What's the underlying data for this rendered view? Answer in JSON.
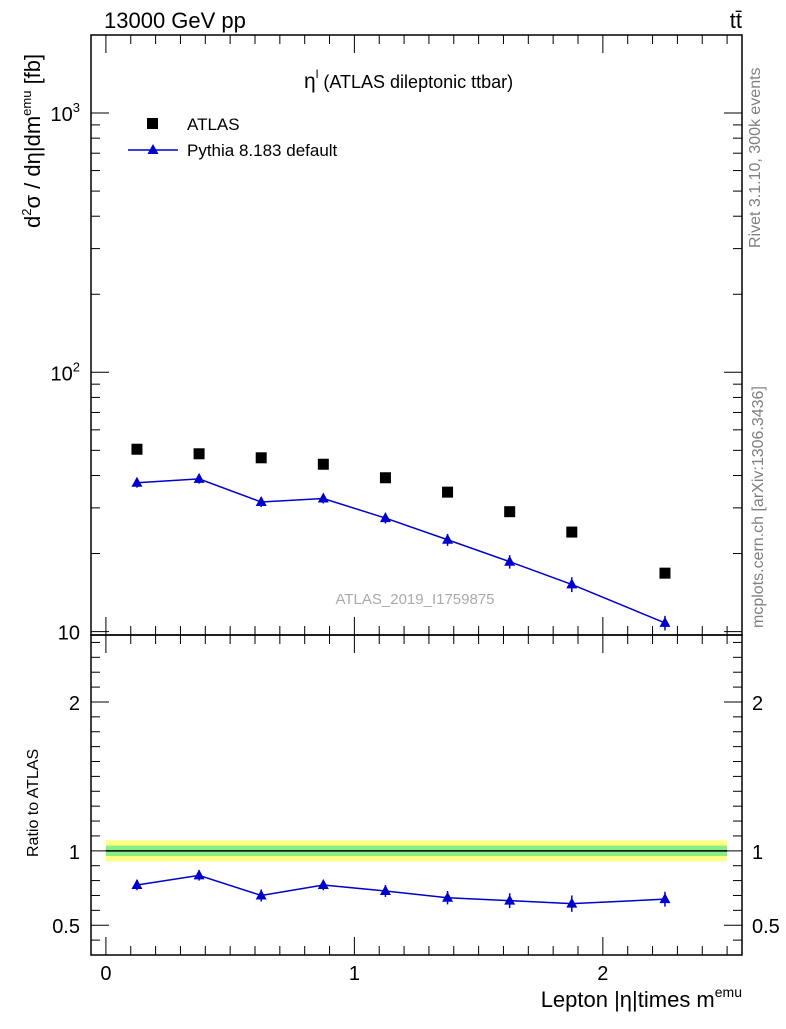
{
  "header": {
    "energy": "13000 GeV pp",
    "process": "tt̄"
  },
  "sidebar": {
    "rivet": "Rivet 3.1.10,  300k events",
    "site": "mcplots.cern.ch [arXiv:1306.3436]"
  },
  "chart_data": [
    {
      "type": "scatter",
      "panel": "main",
      "title": "ηˡ (ATLAS dileptonic ttbar)",
      "title_main": "η",
      "title_sup": "l",
      "title_rest": " (ATLAS dileptonic ttbar)",
      "ylabel_parts": [
        "d",
        "2",
        "σ / dη|dm",
        "emu",
        " [fb]"
      ],
      "yscale": "log",
      "ylim": [
        9.7,
        2000
      ],
      "xlim": [
        -0.06,
        2.56
      ],
      "yticks": [
        {
          "value": 10,
          "label": "10"
        },
        {
          "value": 100,
          "label": "10",
          "sup": "2"
        },
        {
          "value": 1000,
          "label": "10",
          "sup": "3"
        }
      ],
      "watermark": "ATLAS_2019_I1759875",
      "legend": {
        "position": "top-left"
      },
      "series": [
        {
          "name": "ATLAS",
          "marker": "square",
          "color": "#000000",
          "x": [
            0.125,
            0.375,
            0.625,
            0.875,
            1.125,
            1.375,
            1.625,
            1.875,
            2.25
          ],
          "y": [
            50.5,
            48.5,
            46.8,
            44.2,
            39.2,
            34.5,
            29.0,
            24.2,
            16.8
          ]
        },
        {
          "name": "Pythia 8.183 default",
          "marker": "triangle",
          "color": "#0000cc",
          "x": [
            0.125,
            0.375,
            0.625,
            0.875,
            1.125,
            1.375,
            1.625,
            1.875,
            2.25
          ],
          "y": [
            37.5,
            38.8,
            31.6,
            32.6,
            27.4,
            22.6,
            18.6,
            15.2,
            10.8
          ],
          "err": [
            1.6,
            1.6,
            1.4,
            1.4,
            1.3,
            1.2,
            1.1,
            1.0,
            0.7
          ]
        }
      ]
    },
    {
      "type": "line",
      "panel": "ratio",
      "ylabel": "Ratio to ATLAS",
      "xlabel": "Lepton |η|times m",
      "xlabel_sup": "emu",
      "ylim": [
        0.3,
        2.45
      ],
      "xlim": [
        -0.06,
        2.56
      ],
      "yticks": [
        {
          "value": 0.5,
          "label": "0.5"
        },
        {
          "value": 1,
          "label": "1"
        },
        {
          "value": 2,
          "label": "2"
        }
      ],
      "xticks": [
        {
          "value": 0,
          "label": "0"
        },
        {
          "value": 1,
          "label": "1"
        },
        {
          "value": 2,
          "label": "2"
        }
      ],
      "bands": [
        {
          "color": "#ffff80",
          "low": 0.93,
          "high": 1.07
        },
        {
          "color": "#88ee88",
          "low": 0.965,
          "high": 1.035
        }
      ],
      "reference": 1,
      "series": [
        {
          "name": "Pythia 8.183 default",
          "color": "#0000cc",
          "x": [
            0.125,
            0.375,
            0.625,
            0.875,
            1.125,
            1.375,
            1.625,
            1.875,
            2.25
          ],
          "y": [
            0.77,
            0.835,
            0.7,
            0.77,
            0.73,
            0.685,
            0.665,
            0.645,
            0.675
          ],
          "err": [
            0.035,
            0.035,
            0.04,
            0.035,
            0.04,
            0.045,
            0.05,
            0.055,
            0.05
          ]
        }
      ]
    }
  ]
}
